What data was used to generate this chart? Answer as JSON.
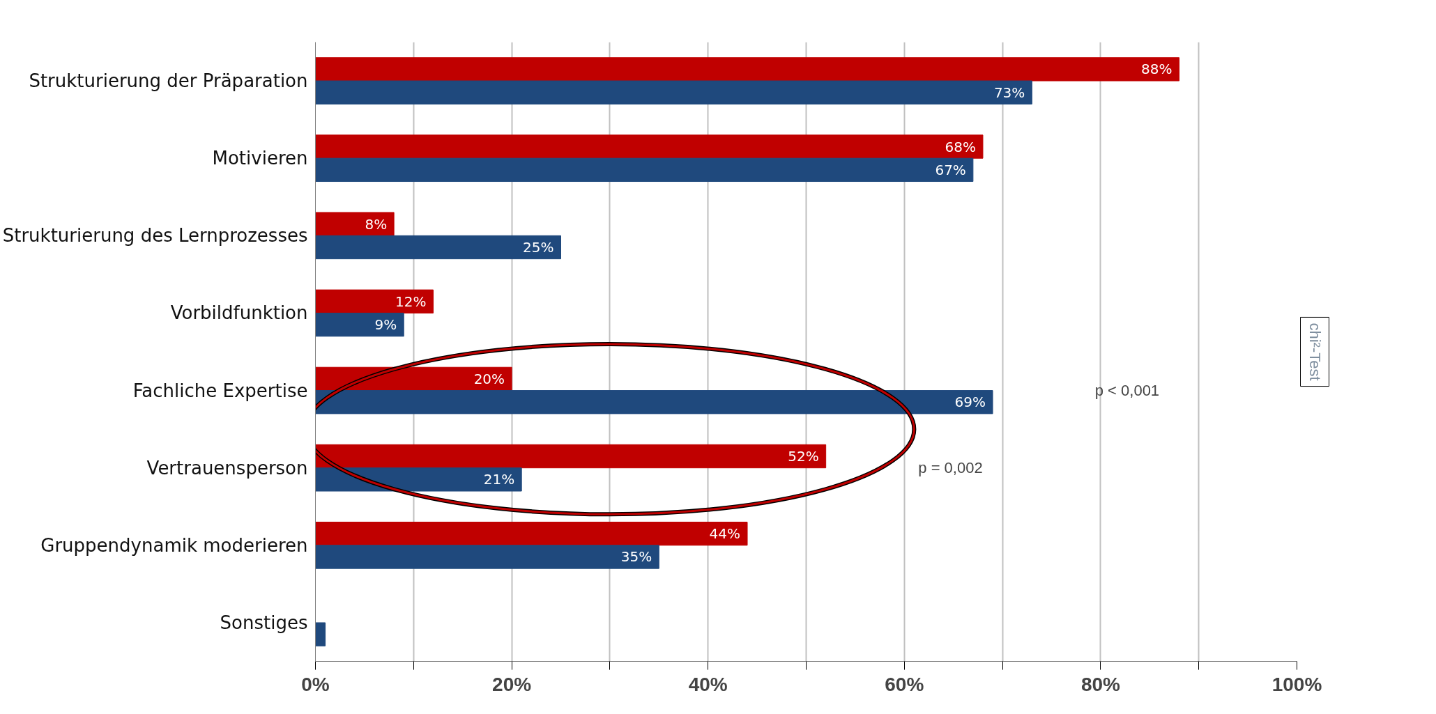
{
  "chart_data": {
    "type": "bar",
    "orientation": "horizontal",
    "categories": [
      "Strukturierung der Präparation",
      "Motivieren",
      "Strukturierung des Lernprozesses",
      "Vorbildfunktion",
      "Fachliche Expertise",
      "Vertrauensperson",
      "Gruppendynamik moderieren",
      "Sonstiges"
    ],
    "series": [
      {
        "color": "#c00000",
        "values": [
          88,
          68,
          8,
          12,
          20,
          52,
          44,
          null
        ],
        "value_labels": [
          "88%",
          "68%",
          "8%",
          "12%",
          "20%",
          "52%",
          "44%",
          null
        ]
      },
      {
        "color": "#1f497d",
        "values": [
          73,
          67,
          25,
          9,
          69,
          21,
          35,
          1
        ],
        "value_labels": [
          "73%",
          "67%",
          "25%",
          "9%",
          "69%",
          "21%",
          "35%",
          null
        ]
      }
    ],
    "xlim": [
      0,
      100
    ],
    "xticks": [
      {
        "value": 0,
        "label": "0%"
      },
      {
        "value": 10,
        "label": null
      },
      {
        "value": 20,
        "label": "20%"
      },
      {
        "value": 30,
        "label": null
      },
      {
        "value": 40,
        "label": "40%"
      },
      {
        "value": 50,
        "label": null
      },
      {
        "value": 60,
        "label": "60%"
      },
      {
        "value": 70,
        "label": null
      },
      {
        "value": 80,
        "label": "80%"
      },
      {
        "value": 90,
        "label": null
      },
      {
        "value": 100,
        "label": "100%"
      }
    ],
    "grid": "x",
    "annotations": [
      "p < 0,001",
      "p = 0,002",
      "chi²-Test"
    ]
  }
}
